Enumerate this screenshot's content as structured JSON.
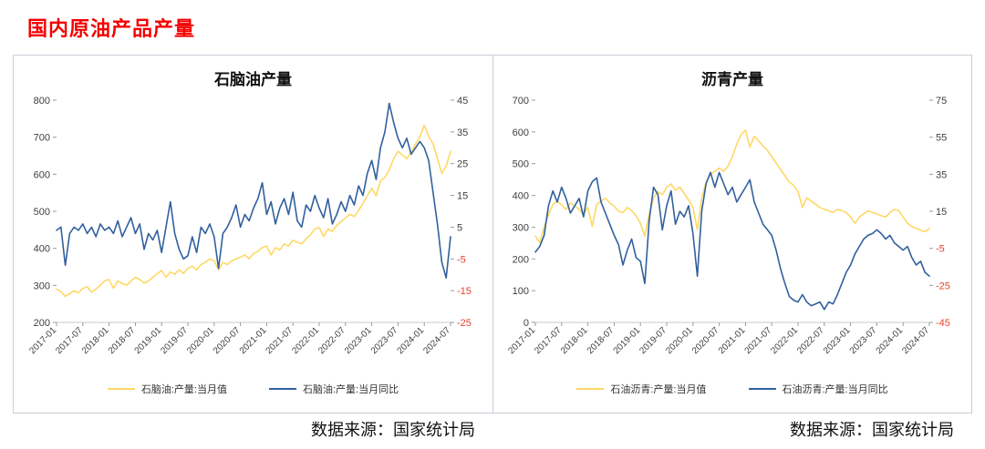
{
  "page": {
    "title": "国内原油产品产量"
  },
  "style": {
    "title_color": "#f40000",
    "axis_text_color": "#3f3f3f",
    "negative_tick_color": "#e8432c",
    "baseline_color": "#c8c8c8",
    "yellow": "#ffd866",
    "blue": "#31609e"
  },
  "source_left": "数据来源：国家统计局",
  "source_right": "数据来源：国家统计局",
  "chart_data": [
    {
      "type": "line",
      "title": "石脑油产量",
      "legend_position": "bottom",
      "grid": false,
      "x_tick_step": 6,
      "x_tick_labels": [
        "2017-01",
        "2017-07",
        "2018-01",
        "2018-07",
        "2019-01",
        "2019-07",
        "2020-01",
        "2020-07",
        "2021-01",
        "2021-07",
        "2022-01",
        "2022-07",
        "2023-01",
        "2023-07",
        "2024-01",
        "2024-07"
      ],
      "left_axis": {
        "min": 200,
        "max": 800,
        "ticks": [
          800,
          700,
          600,
          500,
          400,
          300,
          200
        ]
      },
      "right_axis": {
        "min": -25,
        "max": 45,
        "ticks": [
          45,
          35,
          25,
          15,
          5,
          -5,
          -15,
          -25
        ]
      },
      "series": [
        {
          "name": "石脑油:产量:当月值",
          "axis": "left",
          "color": "#ffd866",
          "values": [
            290,
            283,
            270,
            278,
            285,
            280,
            292,
            296,
            282,
            290,
            300,
            312,
            316,
            292,
            312,
            305,
            300,
            312,
            322,
            316,
            306,
            312,
            322,
            332,
            340,
            322,
            336,
            330,
            342,
            332,
            346,
            352,
            342,
            356,
            362,
            372,
            366,
            342,
            362,
            356,
            366,
            372,
            376,
            382,
            372,
            386,
            392,
            402,
            406,
            382,
            402,
            396,
            412,
            406,
            422,
            416,
            412,
            426,
            436,
            452,
            456,
            432,
            452,
            446,
            462,
            472,
            482,
            492,
            486,
            502,
            522,
            542,
            562,
            542,
            582,
            592,
            612,
            642,
            662,
            652,
            642,
            660,
            682,
            702,
            732,
            702,
            682,
            642,
            602,
            622,
            662
          ]
        },
        {
          "name": "石脑油:产量:当月同比",
          "axis": "right",
          "color": "#31609e",
          "values": [
            4,
            5,
            -7,
            3,
            5,
            4,
            6,
            3,
            5,
            2,
            6,
            4,
            5,
            3,
            7,
            2,
            5,
            8,
            3,
            6,
            -2,
            3,
            1,
            4,
            -3,
            5,
            13,
            3,
            -2,
            -5,
            -4,
            2,
            -3,
            5,
            3,
            6,
            2,
            -8,
            3,
            5,
            8,
            12,
            5,
            9,
            7,
            11,
            14,
            19,
            9,
            13,
            6,
            11,
            14,
            9,
            16,
            7,
            5,
            12,
            10,
            15,
            11,
            8,
            14,
            6,
            9,
            13,
            10,
            15,
            12,
            18,
            15,
            22,
            26,
            20,
            30,
            35,
            44,
            38,
            33,
            30,
            33,
            28,
            30,
            32,
            30,
            26,
            16,
            6,
            -6,
            -11,
            2
          ]
        }
      ]
    },
    {
      "type": "line",
      "title": "沥青产量",
      "legend_position": "bottom",
      "grid": false,
      "x_tick_step": 6,
      "x_tick_labels": [
        "2017-01",
        "2017-07",
        "2018-01",
        "2018-07",
        "2019-01",
        "2019-07",
        "2020-01",
        "2020-07",
        "2021-01",
        "2021-07",
        "2022-01",
        "2022-07",
        "2023-01",
        "2023-07",
        "2024-01",
        "2024-07"
      ],
      "left_axis": {
        "min": 0,
        "max": 700,
        "ticks": [
          700,
          600,
          500,
          400,
          300,
          200,
          100,
          0
        ]
      },
      "right_axis": {
        "min": -45,
        "max": 75,
        "ticks": [
          75,
          55,
          35,
          15,
          -5,
          -25,
          -45
        ]
      },
      "series": [
        {
          "name": "石油沥青:产量:当月值",
          "axis": "left",
          "color": "#ffd866",
          "values": [
            272,
            252,
            300,
            340,
            372,
            382,
            370,
            356,
            376,
            366,
            356,
            340,
            362,
            302,
            372,
            382,
            392,
            376,
            366,
            350,
            346,
            362,
            352,
            336,
            312,
            272,
            342,
            392,
            412,
            402,
            426,
            436,
            416,
            426,
            406,
            386,
            362,
            292,
            392,
            442,
            466,
            476,
            486,
            476,
            492,
            522,
            562,
            592,
            606,
            552,
            586,
            572,
            556,
            542,
            522,
            502,
            482,
            462,
            442,
            432,
            412,
            362,
            392,
            382,
            372,
            362,
            356,
            352,
            346,
            356,
            352,
            346,
            332,
            312,
            332,
            342,
            352,
            346,
            342,
            336,
            332,
            346,
            356,
            352,
            332,
            312,
            302,
            296,
            290,
            286,
            296
          ]
        },
        {
          "name": "石油沥青:产量:当月同比",
          "axis": "right",
          "color": "#31609e",
          "values": [
            -7,
            -4,
            2,
            18,
            26,
            20,
            28,
            22,
            14,
            18,
            22,
            12,
            26,
            31,
            33,
            20,
            14,
            8,
            2,
            -3,
            -14,
            -6,
            0,
            -10,
            -12,
            -24,
            10,
            28,
            24,
            5,
            18,
            26,
            8,
            15,
            12,
            18,
            3,
            -20,
            15,
            30,
            36,
            28,
            36,
            30,
            24,
            28,
            20,
            24,
            28,
            32,
            20,
            14,
            8,
            5,
            2,
            -6,
            -16,
            -24,
            -31,
            -33,
            -34,
            -30,
            -34,
            -36,
            -35,
            -34,
            -38,
            -34,
            -35,
            -30,
            -24,
            -18,
            -14,
            -8,
            -4,
            0,
            2,
            3,
            5,
            3,
            0,
            2,
            -2,
            -4,
            -6,
            -4,
            -10,
            -14,
            -12,
            -18,
            -20
          ]
        }
      ]
    }
  ]
}
